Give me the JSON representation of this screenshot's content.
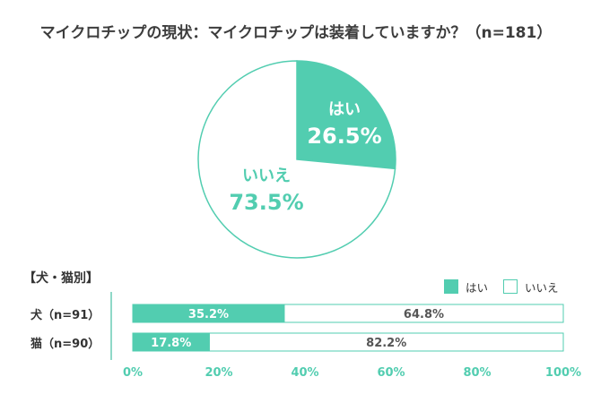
{
  "chart_data": [
    {
      "type": "pie",
      "title": "マイクロチップの現状：マイクロチップは装着していますか？（n=181）",
      "slices": [
        {
          "label": "はい",
          "value": 26.5,
          "value_label": "26.5%",
          "color": "#52cdb0"
        },
        {
          "label": "いいえ",
          "value": 73.5,
          "value_label": "73.5%",
          "color": "#ffffff"
        }
      ]
    },
    {
      "type": "bar",
      "orientation": "horizontal",
      "stacked": true,
      "heading": "【犬・猫別】",
      "categories": [
        "犬（n=91）",
        "猫（n=90）"
      ],
      "series": [
        {
          "name": "はい",
          "values": [
            35.2,
            17.8
          ],
          "labels": [
            "35.2%",
            "17.8%"
          ],
          "color": "#52cdb0"
        },
        {
          "name": "いいえ",
          "values": [
            64.8,
            82.2
          ],
          "labels": [
            "64.8%",
            "82.2%"
          ],
          "color": "#ffffff"
        }
      ],
      "xlim": [
        0,
        100
      ],
      "x_ticks": [
        "0%",
        "20%",
        "40%",
        "60%",
        "80%",
        "100%"
      ],
      "legend_position": "top-right"
    }
  ],
  "colors": {
    "accent": "#52cdb0",
    "border": "#52cdb0"
  }
}
